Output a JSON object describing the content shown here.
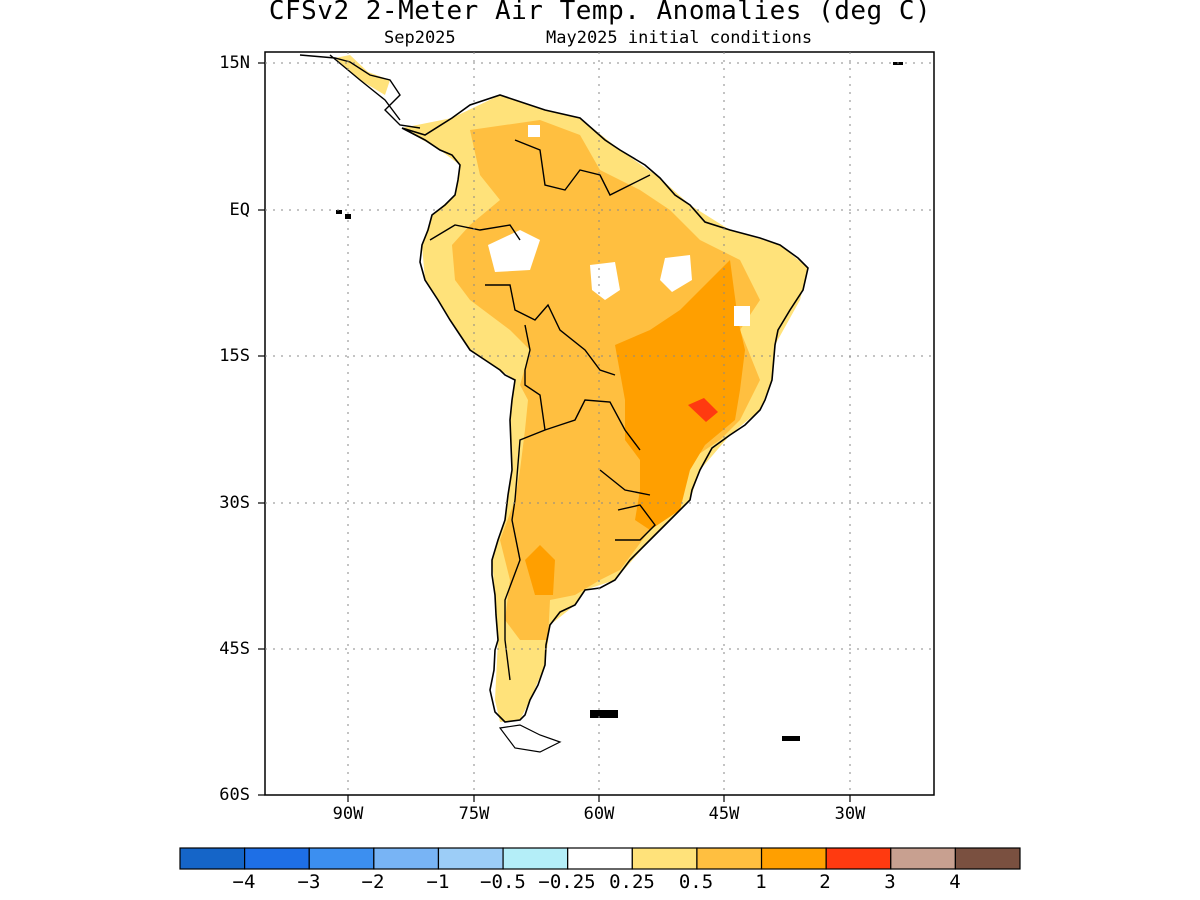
{
  "header": {
    "title": "CFSv2 2-Meter Air Temp. Anomalies (deg C)",
    "subtitle_left": "Sep2025",
    "subtitle_right": "May2025 initial conditions"
  },
  "axes": {
    "y_ticks": [
      "15N",
      "EQ",
      "15S",
      "30S",
      "45S",
      "60S"
    ],
    "x_ticks": [
      "90W",
      "75W",
      "60W",
      "45W",
      "30W"
    ],
    "lat_range": [
      -60,
      15
    ],
    "lon_range": [
      -100,
      -20
    ],
    "grid": "dotted"
  },
  "colorbar": {
    "colors": [
      "#1565c8",
      "#1e6fe6",
      "#3c8ff0",
      "#78b4f5",
      "#9ccdf7",
      "#b4eef8",
      "#ffffff",
      "#ffe27a",
      "#ffbf40",
      "#ff9f00",
      "#ff3a10",
      "#c8a090",
      "#7a5040"
    ],
    "labels": [
      "−4",
      "−3",
      "−2",
      "−1",
      "−0.5",
      "−0.25",
      "0.25",
      "0.5",
      "1",
      "2",
      "3",
      "4"
    ]
  },
  "map": {
    "region": "South America",
    "land_color": "#ffe27a",
    "mid_color": "#ffbf40",
    "warm_color": "#ff9f00",
    "hot_color": "#ff3a10",
    "neutral_color": "#ffffff"
  }
}
